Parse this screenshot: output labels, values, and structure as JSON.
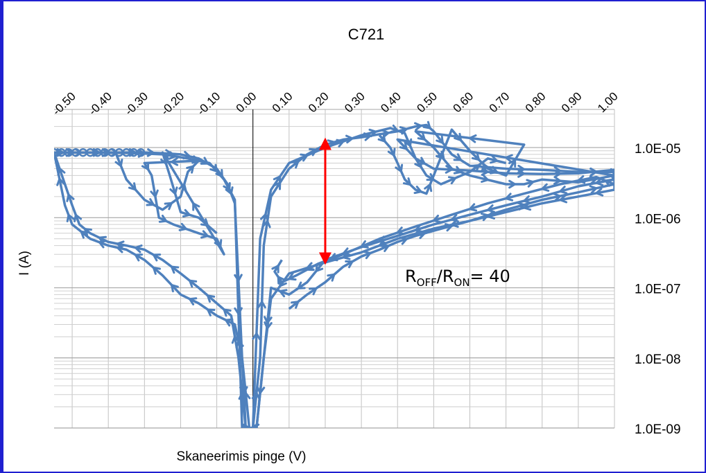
{
  "chart_data": {
    "type": "line",
    "title": "C721",
    "xlabel": "Skaneerimis pinge (V)",
    "ylabel": "I (A)",
    "xlim": [
      -0.55,
      1.0
    ],
    "ylim": [
      1e-09,
      3.5e-05
    ],
    "yscale": "log",
    "x_tick_labels": [
      "-0.50",
      "-0.40",
      "-0.30",
      "-0.20",
      "-0.10",
      "0.00",
      "0.10",
      "0.20",
      "0.30",
      "0.40",
      "0.50",
      "0.60",
      "0.70",
      "0.80",
      "0.90",
      "1.00"
    ],
    "x_ticks": [
      -0.5,
      -0.4,
      -0.3,
      -0.2,
      -0.1,
      0.0,
      0.1,
      0.2,
      0.3,
      0.4,
      0.5,
      0.6,
      0.7,
      0.8,
      0.9,
      1.0
    ],
    "x_axis_position": "top",
    "y_tick_labels": [
      "1.0E-05",
      "1.0E-06",
      "1.0E-07",
      "1.0E-08",
      "1.0E-09"
    ],
    "y_ticks": [
      1e-05,
      1e-06,
      1e-07,
      1e-08,
      1e-09
    ],
    "y_axis_position": "right",
    "grid": true,
    "series_color": "#4f81bd",
    "annotation": {
      "text_parts": [
        "R",
        "OFF",
        "/R",
        "ON",
        "= 40"
      ],
      "arrow_color": "#ff0000",
      "arrow_x": 0.2,
      "arrow_from": 1e-05,
      "arrow_to": 2.3e-07
    },
    "series": [
      {
        "points": [
          [
            -0.55,
            8.5e-06
          ],
          [
            -0.5,
            8.5e-06
          ],
          [
            -0.45,
            8.5e-06
          ],
          [
            -0.4,
            8.5e-06
          ],
          [
            -0.35,
            8.5e-06
          ],
          [
            -0.3,
            8.5e-06
          ],
          [
            -0.25,
            8.3e-06
          ],
          [
            -0.2,
            8e-06
          ],
          [
            -0.15,
            7e-06
          ],
          [
            -0.1,
            5e-06
          ],
          [
            -0.07,
            3e-06
          ],
          [
            -0.05,
            1.6e-06
          ],
          [
            -0.03,
            1e-08
          ],
          [
            -0.02,
            1e-09
          ],
          [
            0.0,
            1e-09
          ],
          [
            0.02,
            1e-08
          ],
          [
            0.03,
            4e-07
          ],
          [
            0.05,
            2e-06
          ],
          [
            0.1,
            5e-06
          ],
          [
            0.15,
            8e-06
          ],
          [
            0.2,
            1.1e-05
          ],
          [
            0.25,
            1.3e-05
          ],
          [
            0.3,
            1.4e-05
          ],
          [
            0.35,
            1.55e-05
          ],
          [
            0.4,
            1.7e-05
          ],
          [
            0.45,
            2e-05
          ],
          [
            0.48,
            2.1e-05
          ],
          [
            0.5,
            1.7e-05
          ],
          [
            0.55,
            8e-06
          ],
          [
            0.6,
            5.5e-06
          ],
          [
            0.7,
            5e-06
          ],
          [
            0.8,
            4.8e-06
          ],
          [
            0.9,
            4.5e-06
          ],
          [
            1.0,
            4.5e-06
          ],
          [
            1.0,
            2.5e-06
          ],
          [
            0.9,
            2e-06
          ],
          [
            0.8,
            1.6e-06
          ],
          [
            0.7,
            1.2e-06
          ],
          [
            0.6,
            9e-07
          ],
          [
            0.5,
            7e-07
          ],
          [
            0.4,
            5e-07
          ],
          [
            0.3,
            3.2e-07
          ],
          [
            0.2,
            2.3e-07
          ],
          [
            0.1,
            1.6e-07
          ],
          [
            0.05,
            7e-08
          ],
          [
            0.03,
            1e-08
          ],
          [
            0.01,
            1e-09
          ],
          [
            -0.01,
            1e-09
          ],
          [
            -0.03,
            1e-08
          ],
          [
            -0.05,
            3e-08
          ],
          [
            -0.1,
            4e-08
          ],
          [
            -0.15,
            6e-08
          ],
          [
            -0.2,
            8e-08
          ],
          [
            -0.25,
            1.5e-07
          ],
          [
            -0.3,
            2.5e-07
          ],
          [
            -0.35,
            3.5e-07
          ],
          [
            -0.4,
            4e-07
          ],
          [
            -0.45,
            5e-07
          ],
          [
            -0.5,
            8e-07
          ],
          [
            -0.52,
            1.5e-06
          ],
          [
            -0.55,
            8.5e-06
          ]
        ]
      },
      {
        "points": [
          [
            -0.55,
            8.5e-06
          ],
          [
            -0.45,
            8.5e-06
          ],
          [
            -0.35,
            8.4e-06
          ],
          [
            -0.25,
            8e-06
          ],
          [
            -0.18,
            7e-06
          ],
          [
            -0.12,
            6e-06
          ],
          [
            -0.08,
            3.5e-06
          ],
          [
            -0.05,
            1.8e-06
          ],
          [
            -0.03,
            1e-09
          ],
          [
            0.0,
            1e-09
          ],
          [
            0.02,
            5e-07
          ],
          [
            0.05,
            2.5e-06
          ],
          [
            0.1,
            6e-06
          ],
          [
            0.2,
            1e-05
          ],
          [
            0.3,
            1.5e-05
          ],
          [
            0.38,
            1.9e-05
          ],
          [
            0.42,
            1.6e-05
          ],
          [
            0.45,
            7e-06
          ],
          [
            0.5,
            5e-06
          ],
          [
            0.6,
            4.7e-06
          ],
          [
            0.7,
            4.3e-06
          ],
          [
            0.8,
            4.2e-06
          ],
          [
            0.9,
            4.3e-06
          ],
          [
            1.0,
            4.8e-06
          ],
          [
            1.0,
            3.5e-06
          ],
          [
            0.9,
            2.8e-06
          ],
          [
            0.8,
            2e-06
          ],
          [
            0.7,
            1.5e-06
          ],
          [
            0.6,
            1.1e-06
          ],
          [
            0.5,
            8e-07
          ],
          [
            0.4,
            5.5e-07
          ],
          [
            0.3,
            3.8e-07
          ],
          [
            0.2,
            2.5e-07
          ],
          [
            0.15,
            1.2e-07
          ],
          [
            0.1,
            8e-08
          ],
          [
            0.05,
            1e-07
          ],
          [
            0.03,
            1e-08
          ],
          [
            0.01,
            1e-09
          ],
          [
            -0.02,
            1e-09
          ],
          [
            -0.04,
            1e-08
          ],
          [
            -0.06,
            4e-08
          ],
          [
            -0.1,
            6e-08
          ],
          [
            -0.15,
            1e-07
          ],
          [
            -0.2,
            1.6e-07
          ],
          [
            -0.25,
            2.5e-07
          ],
          [
            -0.3,
            3.5e-07
          ],
          [
            -0.35,
            4e-07
          ],
          [
            -0.4,
            4.5e-07
          ],
          [
            -0.45,
            6e-07
          ],
          [
            -0.48,
            8e-07
          ],
          [
            -0.5,
            1.5e-06
          ],
          [
            -0.52,
            3e-06
          ],
          [
            -0.55,
            8.5e-06
          ]
        ]
      },
      {
        "points": [
          [
            -0.38,
            8.5e-06
          ],
          [
            -0.35,
            3.5e-06
          ],
          [
            -0.3,
            1.8e-06
          ],
          [
            -0.25,
            1.3e-06
          ],
          [
            -0.2,
            2e-06
          ],
          [
            -0.18,
            4.5e-06
          ],
          [
            -0.15,
            6.5e-06
          ],
          [
            -0.3,
            6e-06
          ],
          [
            -0.28,
            4e-06
          ],
          [
            -0.26,
            1e-06
          ],
          [
            -0.22,
            8e-07
          ],
          [
            -0.15,
            6e-07
          ],
          [
            -0.1,
            5e-07
          ],
          [
            -0.08,
            3e-07
          ],
          [
            -0.25,
            8.5e-06
          ],
          [
            -0.23,
            4e-06
          ],
          [
            -0.2,
            1.2e-06
          ],
          [
            -0.15,
            1e-06
          ],
          [
            -0.1,
            6e-07
          ]
        ]
      },
      {
        "points": [
          [
            0.35,
            1.5e-05
          ],
          [
            0.38,
            1e-05
          ],
          [
            0.4,
            6e-06
          ],
          [
            0.42,
            3.5e-06
          ],
          [
            0.45,
            2.5e-06
          ],
          [
            0.48,
            2.2e-06
          ],
          [
            0.5,
            4e-06
          ],
          [
            0.55,
            1.8e-05
          ],
          [
            0.6,
            9e-06
          ],
          [
            0.65,
            5e-06
          ],
          [
            0.7,
            4e-06
          ],
          [
            0.75,
            1.1e-05
          ],
          [
            0.45,
            1.7e-05
          ],
          [
            0.5,
            1e-05
          ],
          [
            0.55,
            5e-06
          ],
          [
            0.6,
            4e-06
          ],
          [
            0.7,
            3e-06
          ],
          [
            0.75,
            3e-06
          ],
          [
            0.8,
            3.5e-06
          ],
          [
            0.9,
            3.2e-06
          ],
          [
            1.0,
            4e-06
          ],
          [
            0.4,
            1.3e-05
          ],
          [
            0.45,
            7e-06
          ],
          [
            0.48,
            4e-06
          ],
          [
            0.52,
            3e-06
          ],
          [
            0.6,
            4.5e-06
          ],
          [
            0.65,
            7e-06
          ],
          [
            0.7,
            6e-06
          ]
        ]
      },
      {
        "points": [
          [
            0.1,
            5e-08
          ],
          [
            0.15,
            8e-08
          ],
          [
            0.2,
            1.2e-07
          ],
          [
            0.25,
            2e-07
          ],
          [
            0.3,
            2.8e-07
          ],
          [
            0.35,
            3.5e-07
          ],
          [
            0.4,
            4.5e-07
          ],
          [
            0.45,
            5.5e-07
          ],
          [
            0.5,
            6.5e-07
          ],
          [
            0.6,
            9e-07
          ],
          [
            0.7,
            1.3e-06
          ],
          [
            0.8,
            1.8e-06
          ],
          [
            0.9,
            2.3e-06
          ],
          [
            1.0,
            3e-06
          ],
          [
            0.95,
            3.8e-06
          ],
          [
            0.85,
            3e-06
          ],
          [
            0.75,
            2.2e-06
          ],
          [
            0.65,
            1.6e-06
          ],
          [
            0.55,
            1.1e-06
          ],
          [
            0.45,
            7.5e-07
          ],
          [
            0.35,
            5e-07
          ],
          [
            0.25,
            3e-07
          ],
          [
            0.18,
            2.2e-07
          ],
          [
            0.12,
            1.5e-07
          ],
          [
            0.08,
            1.2e-07
          ],
          [
            0.06,
            1.7e-07
          ],
          [
            0.08,
            2.5e-07
          ]
        ]
      }
    ]
  }
}
